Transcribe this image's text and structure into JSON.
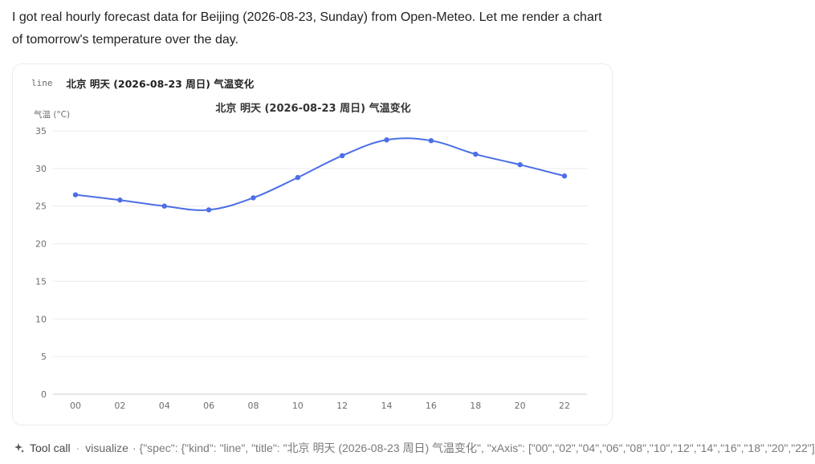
{
  "message": {
    "text": "I got real hourly forecast data for Beijing (2026-08-23, Sunday) from Open-Meteo. Let me render a chart of tomorrow's temperature over the day."
  },
  "card": {
    "kind": "line",
    "title": "北京 明天 (2026-08-23 周日) 气温变化"
  },
  "chart_data": {
    "type": "line",
    "title": "北京 明天 (2026-08-23 周日) 气温变化",
    "ylabel": "气温 (°C)",
    "xlabel": "",
    "categories": [
      "00",
      "02",
      "04",
      "06",
      "08",
      "10",
      "12",
      "14",
      "16",
      "18",
      "20",
      "22"
    ],
    "series": [
      {
        "values": [
          26.5,
          25.8,
          25.0,
          24.5,
          26.1,
          28.8,
          31.7,
          33.8,
          33.7,
          31.9,
          30.5,
          29.0
        ]
      }
    ],
    "ylim": [
      0,
      35
    ],
    "yticks": [
      0,
      5,
      10,
      15,
      20,
      25,
      30,
      35
    ],
    "grid": true,
    "line_color": "#4c6ee6"
  },
  "footer": {
    "icon": "sparkle-icon",
    "label": "Tool call",
    "separator": "·",
    "tool": "visualize",
    "args": "· {\"spec\": {\"kind\": \"line\", \"title\": \"北京 明天 (2026-08-23 周日) 气温变化\", \"xAxis\": [\"00\",\"02\",\"04\",\"06\",\"08\",\"10\",\"12\",\"14\",\"16\",\"18\",\"20\",\"22\"]"
  }
}
